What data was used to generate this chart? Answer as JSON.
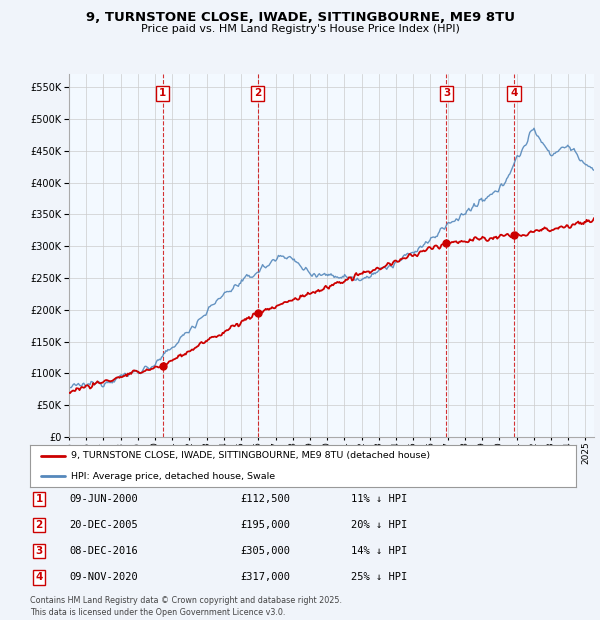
{
  "title1": "9, TURNSTONE CLOSE, IWADE, SITTINGBOURNE, ME9 8TU",
  "title2": "Price paid vs. HM Land Registry's House Price Index (HPI)",
  "ylim": [
    0,
    570000
  ],
  "xlim_start": 1995.0,
  "xlim_end": 2025.5,
  "sale_color": "#cc0000",
  "hpi_color": "#5588bb",
  "hpi_fill_color": "#ddeeff",
  "sale_label": "9, TURNSTONE CLOSE, IWADE, SITTINGBOURNE, ME9 8TU (detached house)",
  "hpi_label": "HPI: Average price, detached house, Swale",
  "transactions": [
    {
      "num": 1,
      "date_x": 2000.44,
      "price": 112500,
      "label": "09-JUN-2000",
      "pct": "11% ↓ HPI"
    },
    {
      "num": 2,
      "date_x": 2005.97,
      "price": 195000,
      "label": "20-DEC-2005",
      "pct": "20% ↓ HPI"
    },
    {
      "num": 3,
      "date_x": 2016.93,
      "price": 305000,
      "label": "08-DEC-2016",
      "pct": "14% ↓ HPI"
    },
    {
      "num": 4,
      "date_x": 2020.85,
      "price": 317000,
      "label": "09-NOV-2020",
      "pct": "25% ↓ HPI"
    }
  ],
  "footer": "Contains HM Land Registry data © Crown copyright and database right 2025.\nThis data is licensed under the Open Government Licence v3.0.",
  "background_color": "#f0f4fa",
  "plot_bg_color": "#ffffff"
}
